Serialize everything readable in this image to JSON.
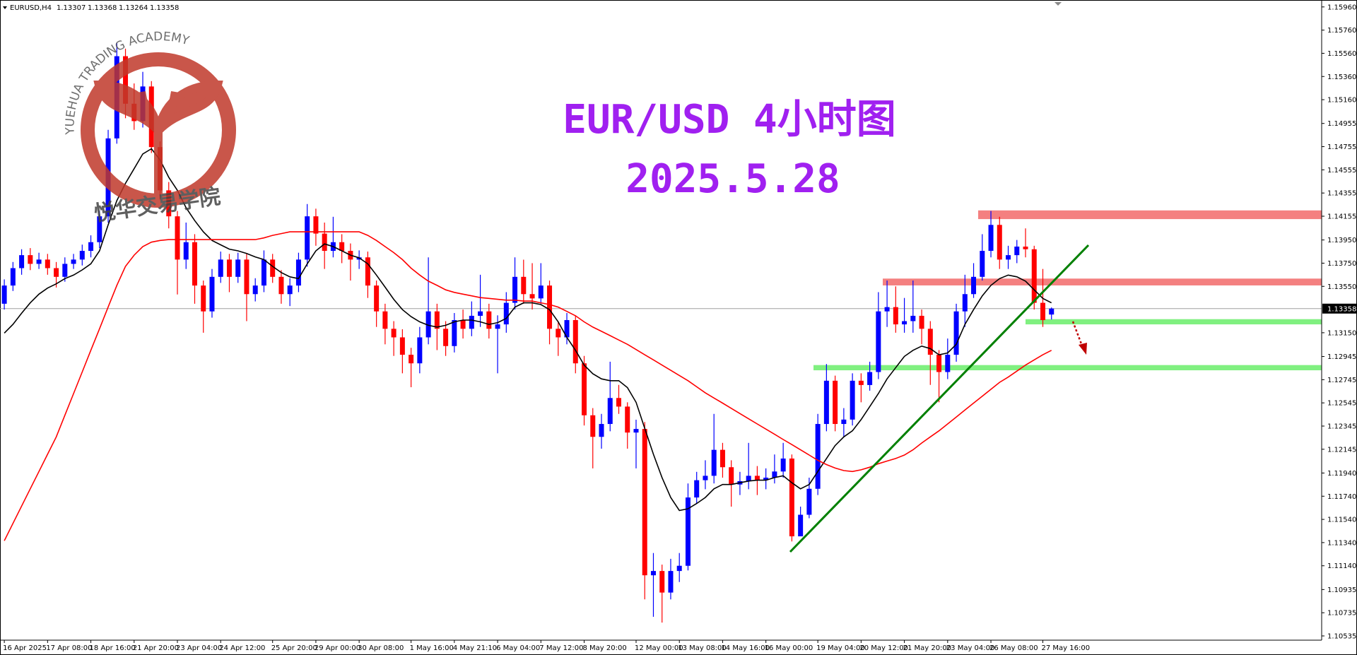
{
  "chart_data": {
    "type": "candlestick",
    "symbol": "EURUSD,H4",
    "title": "EUR/USD 4小时图",
    "subtitle": "2025.5.28",
    "watermark": {
      "top": "YUEHUA TRADING ACADEMY",
      "bottom": "悦华交易学院"
    },
    "up_color": "#0000ff",
    "down_color": "#ff0000",
    "price_line_color": "#a0a0a0",
    "ylim": [
      1.10535,
      1.1596
    ],
    "yticks": [
      {
        "value": 1.1596,
        "label": "1.15960"
      },
      {
        "value": 1.1576,
        "label": "1.15760"
      },
      {
        "value": 1.1556,
        "label": "1.15560"
      },
      {
        "value": 1.1536,
        "label": "1.15360"
      },
      {
        "value": 1.1516,
        "label": "1.15160"
      },
      1.14955,
      1.14755,
      1.14555,
      1.14355,
      1.14155,
      {
        "value": 1.1395,
        "label": "1.13950"
      },
      {
        "value": 1.1375,
        "label": "1.13750"
      },
      {
        "value": 1.1355,
        "label": "1.13550"
      },
      {
        "value": 1.1315,
        "label": "1.13150"
      },
      1.12945,
      1.12745,
      1.12545,
      1.12345,
      1.12145,
      {
        "value": 1.1194,
        "label": "1.11940"
      },
      {
        "value": 1.1174,
        "label": "1.11740"
      },
      {
        "value": 1.1154,
        "label": "1.11540"
      },
      {
        "value": 1.1134,
        "label": "1.11340"
      },
      {
        "value": 1.1114,
        "label": "1.11140"
      },
      1.10935,
      1.10735,
      1.10535
    ],
    "categories": [
      "16 Apr 2025",
      null,
      null,
      null,
      null,
      "17 Apr 08:00",
      null,
      null,
      null,
      null,
      "18 Apr 16:00",
      null,
      null,
      null,
      null,
      "21 Apr 20:00",
      null,
      null,
      null,
      null,
      "23 Apr 04:00",
      null,
      null,
      null,
      null,
      "24 Apr 12:00",
      null,
      null,
      null,
      null,
      null,
      "25 Apr 20:00",
      null,
      null,
      null,
      null,
      "29 Apr 00:00",
      null,
      null,
      null,
      null,
      "30 Apr 08:00",
      null,
      null,
      null,
      null,
      null,
      "1 May 16:00",
      null,
      null,
      null,
      null,
      "4 May 21:10",
      null,
      null,
      null,
      null,
      "6 May 04:00",
      null,
      null,
      null,
      null,
      "7 May 12:00",
      null,
      null,
      null,
      null,
      "8 May 20:00",
      null,
      null,
      null,
      null,
      null,
      "12 May 00:00",
      null,
      null,
      null,
      null,
      "13 May 08:00",
      null,
      null,
      null,
      null,
      "14 May 16:00",
      null,
      null,
      null,
      null,
      "16 May 00:00",
      null,
      null,
      null,
      null,
      null,
      "19 May 04:00",
      null,
      null,
      null,
      null,
      "20 May 12:00",
      null,
      null,
      null,
      null,
      "21 May 20:00",
      null,
      null,
      null,
      null,
      "23 May 04:00",
      null,
      null,
      null,
      null,
      "26 May 08:00",
      null,
      null,
      null,
      null,
      null,
      "27 May 16:00",
      null
    ],
    "ohlc": [
      [
        1.134,
        1.1361,
        1.1335,
        1.13557
      ],
      [
        1.13557,
        1.1376,
        1.1351,
        1.13707
      ],
      [
        1.13707,
        1.1387,
        1.1365,
        1.13819
      ],
      [
        1.13819,
        1.1388,
        1.1369,
        1.13744
      ],
      [
        1.13744,
        1.1384,
        1.137,
        1.13781
      ],
      [
        1.13781,
        1.1383,
        1.1365,
        1.13707
      ],
      [
        1.13707,
        1.1376,
        1.1354,
        1.13632
      ],
      [
        1.13632,
        1.138,
        1.1359,
        1.13744
      ],
      [
        1.13744,
        1.1383,
        1.137,
        1.13781
      ],
      [
        1.13781,
        1.1391,
        1.1373,
        1.13856
      ],
      [
        1.13856,
        1.1399,
        1.138,
        1.13931
      ],
      [
        1.13931,
        1.142,
        1.1388,
        1.14154
      ],
      [
        1.14154,
        1.149,
        1.141,
        1.14826
      ],
      [
        1.14826,
        1.1565,
        1.1478,
        1.15535
      ],
      [
        1.15535,
        1.156,
        1.15,
        1.15125
      ],
      [
        1.15125,
        1.153,
        1.149,
        1.14975
      ],
      [
        1.14975,
        1.154,
        1.1492,
        1.15274
      ],
      [
        1.15274,
        1.1532,
        1.147,
        1.14751
      ],
      [
        1.14751,
        1.148,
        1.143,
        1.14378
      ],
      [
        1.14378,
        1.1445,
        1.1405,
        1.14154
      ],
      [
        1.14154,
        1.142,
        1.1348,
        1.13781
      ],
      [
        1.13781,
        1.141,
        1.137,
        1.13931
      ],
      [
        1.13931,
        1.14,
        1.134,
        1.13557
      ],
      [
        1.13557,
        1.136,
        1.1315,
        1.13334
      ],
      [
        1.13334,
        1.137,
        1.1328,
        1.13632
      ],
      [
        1.13632,
        1.1385,
        1.1358,
        1.13781
      ],
      [
        1.13781,
        1.1383,
        1.135,
        1.13632
      ],
      [
        1.13632,
        1.1384,
        1.1358,
        1.13781
      ],
      [
        1.13781,
        1.1383,
        1.1325,
        1.13483
      ],
      [
        1.13483,
        1.1362,
        1.1342,
        1.13557
      ],
      [
        1.13557,
        1.1386,
        1.135,
        1.13781
      ],
      [
        1.13781,
        1.1383,
        1.1358,
        1.13632
      ],
      [
        1.13632,
        1.1369,
        1.134,
        1.13483
      ],
      [
        1.13483,
        1.1362,
        1.1338,
        1.13557
      ],
      [
        1.13557,
        1.1384,
        1.135,
        1.13781
      ],
      [
        1.13781,
        1.1426,
        1.1372,
        1.14154
      ],
      [
        1.14154,
        1.1422,
        1.139,
        1.14005
      ],
      [
        1.14005,
        1.141,
        1.137,
        1.13856
      ],
      [
        1.13856,
        1.1415,
        1.138,
        1.13931
      ],
      [
        1.13931,
        1.14,
        1.1375,
        1.13856
      ],
      [
        1.13856,
        1.1392,
        1.136,
        1.13781
      ],
      [
        1.13781,
        1.1386,
        1.137,
        1.138
      ],
      [
        1.138,
        1.1385,
        1.1345,
        1.13557
      ],
      [
        1.13557,
        1.136,
        1.132,
        1.13334
      ],
      [
        1.13334,
        1.134,
        1.1305,
        1.13184
      ],
      [
        1.13184,
        1.1325,
        1.1295,
        1.1311
      ],
      [
        1.1311,
        1.1318,
        1.128,
        1.1296
      ],
      [
        1.1296,
        1.1302,
        1.1268,
        1.12886
      ],
      [
        1.12886,
        1.132,
        1.128,
        1.1311
      ],
      [
        1.1311,
        1.138,
        1.1305,
        1.13334
      ],
      [
        1.13334,
        1.134,
        1.13,
        1.13184
      ],
      [
        1.13184,
        1.1325,
        1.1295,
        1.13035
      ],
      [
        1.13035,
        1.1332,
        1.1298,
        1.13259
      ],
      [
        1.13259,
        1.1335,
        1.131,
        1.13184
      ],
      [
        1.13184,
        1.1342,
        1.1312,
        1.13296
      ],
      [
        1.13296,
        1.1365,
        1.132,
        1.13334
      ],
      [
        1.13334,
        1.134,
        1.131,
        1.13184
      ],
      [
        1.13184,
        1.133,
        1.128,
        1.13222
      ],
      [
        1.13222,
        1.135,
        1.1315,
        1.13408
      ],
      [
        1.13408,
        1.138,
        1.1335,
        1.13632
      ],
      [
        1.13632,
        1.1378,
        1.134,
        1.13483
      ],
      [
        1.13483,
        1.1375,
        1.1335,
        1.13446
      ],
      [
        1.13446,
        1.1375,
        1.134,
        1.13557
      ],
      [
        1.13557,
        1.136,
        1.1305,
        1.13184
      ],
      [
        1.13184,
        1.1325,
        1.1295,
        1.1311
      ],
      [
        1.1311,
        1.1332,
        1.1305,
        1.13259
      ],
      [
        1.13259,
        1.133,
        1.128,
        1.12886
      ],
      [
        1.12886,
        1.1295,
        1.1235,
        1.12438
      ],
      [
        1.12438,
        1.125,
        1.1198,
        1.12252
      ],
      [
        1.12252,
        1.1245,
        1.1215,
        1.12363
      ],
      [
        1.12363,
        1.129,
        1.123,
        1.12587
      ],
      [
        1.12587,
        1.127,
        1.1245,
        1.12513
      ],
      [
        1.12513,
        1.1255,
        1.1215,
        1.12289
      ],
      [
        1.12289,
        1.124,
        1.1198,
        1.1232
      ],
      [
        1.1232,
        1.1238,
        1.1085,
        1.11058
      ],
      [
        1.11058,
        1.1125,
        1.107,
        1.11095
      ],
      [
        1.11095,
        1.1115,
        1.1065,
        1.10909
      ],
      [
        1.10909,
        1.112,
        1.1085,
        1.11095
      ],
      [
        1.11095,
        1.1125,
        1.11,
        1.1114
      ],
      [
        1.1114,
        1.1185,
        1.111,
        1.11729
      ],
      [
        1.11729,
        1.1195,
        1.1168,
        1.11878
      ],
      [
        1.11878,
        1.1205,
        1.118,
        1.11916
      ],
      [
        1.11916,
        1.1245,
        1.1185,
        1.1214
      ],
      [
        1.1214,
        1.122,
        1.119,
        1.1199
      ],
      [
        1.1199,
        1.1205,
        1.1165,
        1.11841
      ],
      [
        1.11841,
        1.1195,
        1.1175,
        1.1187
      ],
      [
        1.1187,
        1.122,
        1.118,
        1.11916
      ],
      [
        1.11916,
        1.12,
        1.1175,
        1.11878
      ],
      [
        1.11878,
        1.1198,
        1.118,
        1.119
      ],
      [
        1.119,
        1.121,
        1.1185,
        1.11953
      ],
      [
        1.11953,
        1.122,
        1.119,
        1.12065
      ],
      [
        1.12065,
        1.121,
        1.1135,
        1.11394
      ],
      [
        1.11394,
        1.1165,
        1.114,
        1.1158
      ],
      [
        1.1158,
        1.119,
        1.1155,
        1.11804
      ],
      [
        1.11804,
        1.1245,
        1.1175,
        1.12363
      ],
      [
        1.12363,
        1.1288,
        1.123,
        1.12736
      ],
      [
        1.12736,
        1.1278,
        1.123,
        1.12363
      ],
      [
        1.12363,
        1.125,
        1.1225,
        1.12401
      ],
      [
        1.12401,
        1.128,
        1.1235,
        1.12736
      ],
      [
        1.12736,
        1.128,
        1.1255,
        1.12699
      ],
      [
        1.12699,
        1.129,
        1.1265,
        1.12811
      ],
      [
        1.12811,
        1.135,
        1.1275,
        1.13334
      ],
      [
        1.13334,
        1.136,
        1.132,
        1.13371
      ],
      [
        1.13371,
        1.1355,
        1.1315,
        1.13222
      ],
      [
        1.13222,
        1.1345,
        1.1315,
        1.1325
      ],
      [
        1.1325,
        1.136,
        1.1315,
        1.13296
      ],
      [
        1.13296,
        1.1335,
        1.1305,
        1.13184
      ],
      [
        1.13184,
        1.1325,
        1.127,
        1.1296
      ],
      [
        1.1296,
        1.13,
        1.1255,
        1.12811
      ],
      [
        1.12811,
        1.131,
        1.1275,
        1.1296
      ],
      [
        1.1296,
        1.134,
        1.129,
        1.13334
      ],
      [
        1.13334,
        1.1365,
        1.132,
        1.13483
      ],
      [
        1.13483,
        1.1375,
        1.1345,
        1.13632
      ],
      [
        1.13632,
        1.14,
        1.136,
        1.13856
      ],
      [
        1.13856,
        1.142,
        1.138,
        1.1408
      ],
      [
        1.1408,
        1.1415,
        1.137,
        1.13781
      ],
      [
        1.13781,
        1.139,
        1.137,
        1.13819
      ],
      [
        1.13819,
        1.1395,
        1.1375,
        1.13893
      ],
      [
        1.13893,
        1.1405,
        1.138,
        1.1387
      ],
      [
        1.1387,
        1.139,
        1.1335,
        1.13408
      ],
      [
        1.13408,
        1.137,
        1.132,
        1.13259
      ],
      [
        1.13307,
        1.13368,
        1.13264,
        1.13358
      ]
    ],
    "indicators": [
      {
        "color": "#000000",
        "values": [
          1.13147,
          1.13222,
          1.13319,
          1.13408,
          1.13483,
          1.13535,
          1.13572,
          1.13617,
          1.13647,
          1.13692,
          1.13744,
          1.13856,
          1.1408,
          1.14289,
          1.14438,
          1.14565,
          1.14692,
          1.14737,
          1.1464,
          1.1449,
          1.14378,
          1.14229,
          1.14117,
          1.1402,
          1.13946,
          1.13908,
          1.13871,
          1.13856,
          1.13834,
          1.13804,
          1.13781,
          1.13722,
          1.13669,
          1.13632,
          1.13617,
          1.13744,
          1.13856,
          1.13916,
          1.13893,
          1.13856,
          1.13819,
          1.13796,
          1.13744,
          1.13647,
          1.13543,
          1.13438,
          1.13349,
          1.13289,
          1.13244,
          1.13214,
          1.13199,
          1.13214,
          1.13244,
          1.13259,
          1.13259,
          1.13244,
          1.13222,
          1.13237,
          1.13274,
          1.13371,
          1.13408,
          1.13408,
          1.13393,
          1.13349,
          1.13244,
          1.1311,
          1.12998,
          1.12871,
          1.12796,
          1.12752,
          1.12736,
          1.12736,
          1.12677,
          1.1255,
          1.12326,
          1.12102,
          1.11901,
          1.11729,
          1.11617,
          1.11632,
          1.11677,
          1.11729,
          1.11804,
          1.11841,
          1.11841,
          1.11856,
          1.11871,
          1.11878,
          1.11878,
          1.11901,
          1.11916,
          1.11856,
          1.11804,
          1.11841,
          1.11953,
          1.12065,
          1.12177,
          1.12252,
          1.12304,
          1.12401,
          1.12513,
          1.12625,
          1.12752,
          1.12849,
          1.12946,
          1.12998,
          1.13035,
          1.13013,
          1.1296,
          1.12976,
          1.1305,
          1.13222,
          1.13349,
          1.13468,
          1.13558,
          1.13617,
          1.13647,
          1.13632,
          1.13595,
          1.1352,
          1.13446,
          1.13408
        ]
      },
      {
        "color": "#ff0000",
        "values": [
          1.11356,
          1.11505,
          1.11655,
          1.11804,
          1.11953,
          1.12102,
          1.12252,
          1.12438,
          1.12625,
          1.12811,
          1.12998,
          1.13184,
          1.13371,
          1.13558,
          1.13722,
          1.13819,
          1.13893,
          1.13931,
          1.13946,
          1.13953,
          1.13953,
          1.13953,
          1.13953,
          1.13953,
          1.13953,
          1.13953,
          1.13953,
          1.13953,
          1.13953,
          1.13953,
          1.13968,
          1.1399,
          1.14005,
          1.1402,
          1.1402,
          1.1402,
          1.1402,
          1.1402,
          1.1402,
          1.1402,
          1.1402,
          1.1402,
          1.1399,
          1.13946,
          1.13893,
          1.13841,
          1.13781,
          1.13707,
          1.13647,
          1.13595,
          1.13558,
          1.1352,
          1.13498,
          1.13483,
          1.13468,
          1.13453,
          1.13446,
          1.13438,
          1.13431,
          1.13431,
          1.13423,
          1.13423,
          1.13408,
          1.13393,
          1.13371,
          1.13334,
          1.13296,
          1.13244,
          1.13199,
          1.13162,
          1.13125,
          1.13087,
          1.1305,
          1.13005,
          1.1296,
          1.12916,
          1.12871,
          1.12826,
          1.12781,
          1.12736,
          1.12684,
          1.12632,
          1.12587,
          1.12543,
          1.12498,
          1.12453,
          1.12408,
          1.12363,
          1.12319,
          1.12274,
          1.12229,
          1.12185,
          1.1214,
          1.12095,
          1.1205,
          1.12013,
          1.11983,
          1.11961,
          1.11953,
          1.11968,
          1.1199,
          1.1202,
          1.12043,
          1.12065,
          1.12095,
          1.1214,
          1.12199,
          1.12252,
          1.12304,
          1.12363,
          1.12423,
          1.12483,
          1.12543,
          1.12602,
          1.12662,
          1.12722,
          1.12767,
          1.12819,
          1.12871,
          1.12916,
          1.1296,
          1.12998
        ]
      }
    ],
    "zones": [
      {
        "color": "#f48080",
        "range": [
          1.1413,
          1.14205
        ]
      },
      {
        "color": "#f48080",
        "range": [
          1.13558,
          1.13617
        ]
      },
      {
        "color": "#80f080",
        "range": [
          1.13222,
          1.13267
        ]
      },
      {
        "color": "#80f080",
        "range": [
          1.12826,
          1.12871
        ]
      }
    ]
  }
}
